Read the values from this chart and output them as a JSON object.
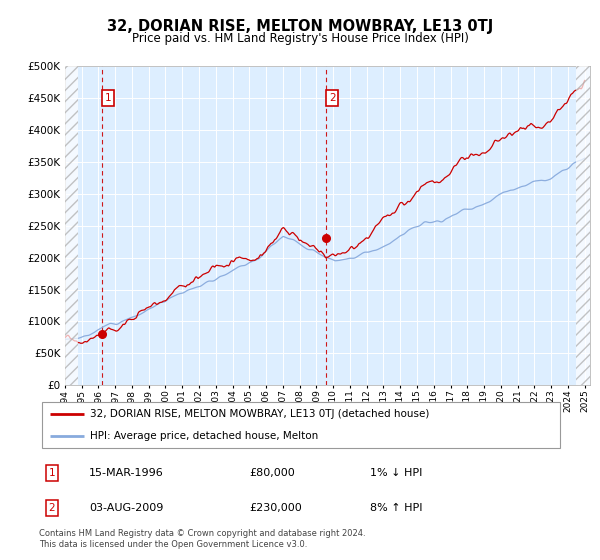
{
  "title": "32, DORIAN RISE, MELTON MOWBRAY, LE13 0TJ",
  "subtitle": "Price paid vs. HM Land Registry's House Price Index (HPI)",
  "legend_line1": "32, DORIAN RISE, MELTON MOWBRAY, LE13 0TJ (detached house)",
  "legend_line2": "HPI: Average price, detached house, Melton",
  "annotation1_date": "15-MAR-1996",
  "annotation1_price": "£80,000",
  "annotation1_hpi": "1% ↓ HPI",
  "annotation2_date": "03-AUG-2009",
  "annotation2_price": "£230,000",
  "annotation2_hpi": "8% ↑ HPI",
  "footer": "Contains HM Land Registry data © Crown copyright and database right 2024.\nThis data is licensed under the Open Government Licence v3.0.",
  "red_color": "#cc0000",
  "blue_color": "#88aadd",
  "plot_bg": "#ddeeff",
  "grid_color": "#ffffff",
  "ylim": [
    0,
    500000
  ],
  "yticks": [
    0,
    50000,
    100000,
    150000,
    200000,
    250000,
    300000,
    350000,
    400000,
    450000,
    500000
  ],
  "year_start": 1994,
  "year_end": 2025,
  "sale1_year": 1996.21,
  "sale1_value": 80000,
  "sale2_year": 2009.59,
  "sale2_value": 230000
}
